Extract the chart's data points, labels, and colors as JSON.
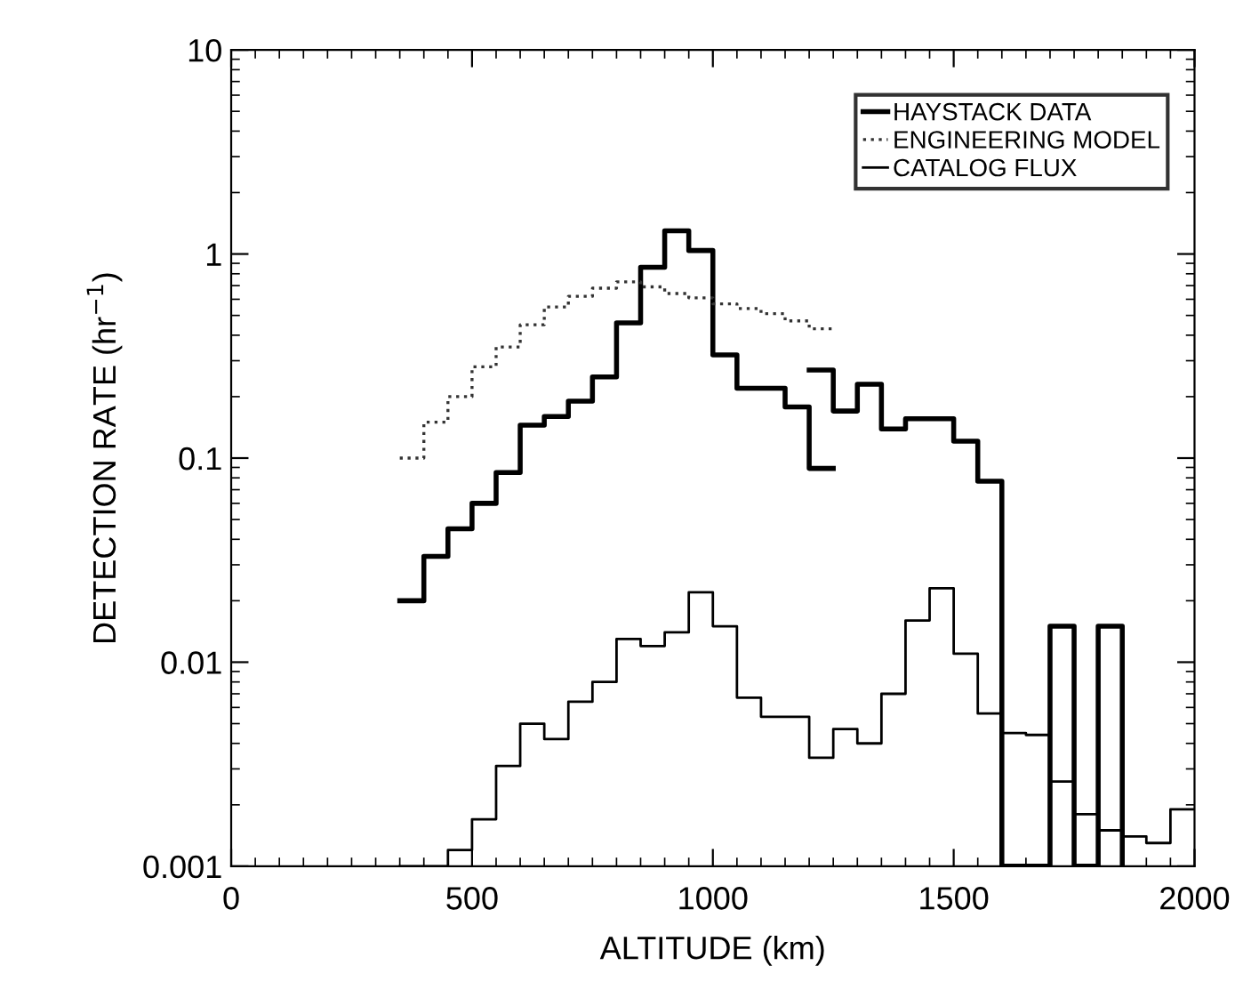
{
  "chart_data": {
    "type": "step",
    "xlabel": "ALTITUDE (km)",
    "ylabel": "DETECTION RATE (hr$^{−1}$)",
    "log": "y",
    "xlim": [
      0,
      2000
    ],
    "xticks": [
      0,
      500,
      1000,
      1500,
      2000
    ],
    "ylim": [
      0.001,
      10
    ],
    "yticks": [
      0.001,
      0.01,
      0.1,
      1,
      10
    ],
    "grid": false,
    "legend": "top right",
    "series": [
      {
        "name": "HAYSTACK DATA",
        "color": "#000000",
        "line_style": "solid",
        "x": [
          350,
          400,
          450,
          500,
          550,
          600,
          650,
          700,
          750,
          800,
          850,
          900,
          950,
          1000,
          1050,
          1100,
          1150,
          1200,
          1250
        ],
        "values": [
          0.02,
          0.033,
          0.045,
          0.06,
          0.085,
          0.145,
          0.16,
          0.19,
          0.25,
          0.46,
          0.86,
          1.3,
          1.04,
          0.32,
          0.22,
          0.22,
          0.178,
          0.089,
          0.089
        ]
      },
      {
        "name": "ENGINEERING MODEL",
        "color": "#333333",
        "line_style": "dotted",
        "x": [
          350,
          400,
          450,
          500,
          550,
          600,
          650,
          700,
          750,
          800,
          850,
          900,
          950,
          1000,
          1050,
          1100,
          1150,
          1200,
          1250
        ],
        "values": [
          0.1,
          0.15,
          0.2,
          0.28,
          0.35,
          0.45,
          0.55,
          0.62,
          0.68,
          0.73,
          0.69,
          0.64,
          0.61,
          0.57,
          0.54,
          0.51,
          0.47,
          0.43,
          0.43
        ]
      },
      {
        "name": "CATALOG FLUX",
        "color": "#000000",
        "line_style": "solid",
        "x": [
          350,
          400,
          450,
          500,
          550,
          600,
          650,
          700,
          750,
          800,
          850,
          900,
          950,
          1000,
          1050,
          1100,
          1150,
          1200,
          1250,
          1300,
          1350,
          1400,
          1450,
          1500,
          1550,
          1600,
          1650,
          1700,
          1750,
          1800,
          1850,
          1900,
          1950,
          2000
        ],
        "values": [
          0.001,
          0.001,
          0.0012,
          0.0017,
          0.0031,
          0.005,
          0.0042,
          0.0064,
          0.008,
          0.013,
          0.012,
          0.014,
          0.022,
          0.015,
          0.0067,
          0.0054,
          0.0054,
          0.0034,
          0.0047,
          0.004,
          0.007,
          0.016,
          0.023,
          0.011,
          0.0056,
          0.0045,
          0.0044,
          0.0026,
          0.0018,
          0.0015,
          0.0014,
          0.0013,
          0.0019,
          0.0019
        ]
      },
      {
        "color": "#000000",
        "line_style": "solid",
        "x": [
          1200,
          1250,
          1300,
          1350,
          1400,
          1450,
          1500,
          1550,
          1600,
          1650,
          1700,
          1750,
          1800,
          1850
        ],
        "values": [
          0.27,
          0.17,
          0.23,
          0.139,
          0.156,
          0.156,
          0.121,
          0.077,
          0.001,
          0.001,
          0.015,
          0.001,
          0.015,
          0.001
        ]
      }
    ]
  }
}
